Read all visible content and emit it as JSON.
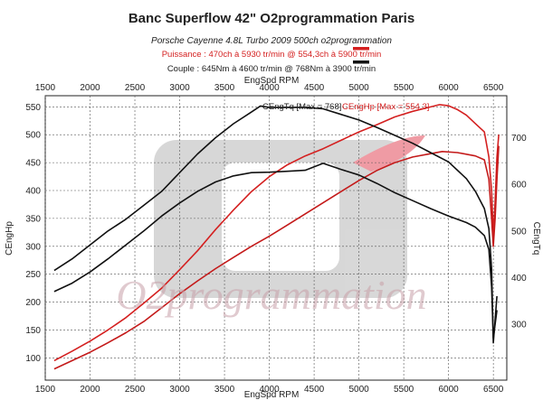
{
  "header": {
    "title": "Banc Superflow 42\" O2programmation Paris",
    "subtitle": "Porsche Cayenne 4.8L Turbo 2009 500ch o2programmation",
    "power_text": "Puissance : 470ch à 5930 tr/min @ 554,3ch à 5900 tr/min",
    "torque_text": "Couple : 645Nm à 4600 tr/min @ 768Nm à 3900 tr/min"
  },
  "watermark": "O2programmation",
  "chart_data": {
    "type": "line",
    "xlabel_top": "EngSpd RPM",
    "xlabel_bottom": "EngSpd RPM",
    "ylabel_left": "CEngHp",
    "ylabel_right": "CEngTq",
    "xlim": [
      1500,
      6650
    ],
    "ylim_left": [
      60,
      570
    ],
    "ylim_right": [
      180,
      790
    ],
    "xticks": [
      1500,
      2000,
      2500,
      3000,
      3500,
      4000,
      4500,
      5000,
      5500,
      6000,
      6500
    ],
    "yticks_left": [
      100,
      150,
      200,
      250,
      300,
      350,
      400,
      450,
      500,
      550
    ],
    "yticks_right": [
      300,
      400,
      500,
      600,
      700
    ],
    "max_labels": {
      "torque": "CEngTq [Max = 768]",
      "power": "CEngHp [Max = 554.3]"
    },
    "colors": {
      "power_stock": "#c41a1a",
      "power_tuned": "#d42020",
      "torque_stock": "#111111",
      "torque_tuned": "#111111",
      "grid": "#555555"
    },
    "series": [
      {
        "name": "CEngHp",
        "axis": "left",
        "color": "#d42020",
        "points": [
          [
            1600,
            95
          ],
          [
            1800,
            112
          ],
          [
            2000,
            130
          ],
          [
            2200,
            150
          ],
          [
            2400,
            172
          ],
          [
            2600,
            198
          ],
          [
            2800,
            225
          ],
          [
            3000,
            258
          ],
          [
            3200,
            292
          ],
          [
            3400,
            330
          ],
          [
            3600,
            365
          ],
          [
            3800,
            398
          ],
          [
            4000,
            425
          ],
          [
            4200,
            446
          ],
          [
            4400,
            462
          ],
          [
            4600,
            475
          ],
          [
            4800,
            490
          ],
          [
            5000,
            505
          ],
          [
            5200,
            518
          ],
          [
            5400,
            532
          ],
          [
            5600,
            542
          ],
          [
            5800,
            550
          ],
          [
            5900,
            554
          ],
          [
            6000,
            552
          ],
          [
            6100,
            545
          ],
          [
            6200,
            535
          ],
          [
            6300,
            520
          ],
          [
            6400,
            505
          ],
          [
            6450,
            460
          ],
          [
            6480,
            400
          ],
          [
            6500,
            320
          ],
          [
            6520,
            380
          ],
          [
            6540,
            460
          ],
          [
            6560,
            500
          ]
        ]
      },
      {
        "name": "",
        "axis": "left",
        "color": "#c41a1a",
        "points": [
          [
            1600,
            80
          ],
          [
            1800,
            95
          ],
          [
            2000,
            110
          ],
          [
            2200,
            127
          ],
          [
            2400,
            145
          ],
          [
            2600,
            165
          ],
          [
            2800,
            190
          ],
          [
            3000,
            215
          ],
          [
            3200,
            238
          ],
          [
            3400,
            260
          ],
          [
            3600,
            280
          ],
          [
            3800,
            300
          ],
          [
            4000,
            318
          ],
          [
            4200,
            338
          ],
          [
            4400,
            358
          ],
          [
            4600,
            378
          ],
          [
            4800,
            398
          ],
          [
            5000,
            418
          ],
          [
            5200,
            436
          ],
          [
            5400,
            450
          ],
          [
            5600,
            460
          ],
          [
            5800,
            466
          ],
          [
            5930,
            470
          ],
          [
            6100,
            468
          ],
          [
            6300,
            462
          ],
          [
            6400,
            455
          ],
          [
            6450,
            420
          ],
          [
            6480,
            350
          ],
          [
            6500,
            300
          ],
          [
            6520,
            350
          ],
          [
            6540,
            420
          ],
          [
            6560,
            480
          ]
        ]
      },
      {
        "name": "CEngTq",
        "axis": "right",
        "color": "#111111",
        "points": [
          [
            1600,
            415
          ],
          [
            1800,
            440
          ],
          [
            2000,
            470
          ],
          [
            2200,
            500
          ],
          [
            2400,
            525
          ],
          [
            2600,
            555
          ],
          [
            2800,
            585
          ],
          [
            3000,
            625
          ],
          [
            3200,
            665
          ],
          [
            3400,
            700
          ],
          [
            3600,
            730
          ],
          [
            3800,
            755
          ],
          [
            3900,
            768
          ],
          [
            4000,
            765
          ],
          [
            4200,
            765
          ],
          [
            4400,
            765
          ],
          [
            4600,
            762
          ],
          [
            4800,
            750
          ],
          [
            5000,
            738
          ],
          [
            5200,
            722
          ],
          [
            5400,
            705
          ],
          [
            5600,
            688
          ],
          [
            5800,
            668
          ],
          [
            6000,
            648
          ],
          [
            6200,
            612
          ],
          [
            6300,
            585
          ],
          [
            6400,
            548
          ],
          [
            6450,
            505
          ],
          [
            6480,
            420
          ],
          [
            6500,
            260
          ],
          [
            6520,
            310
          ],
          [
            6540,
            360
          ]
        ]
      },
      {
        "name": "",
        "axis": "right",
        "color": "#111111",
        "points": [
          [
            1600,
            370
          ],
          [
            1800,
            388
          ],
          [
            2000,
            412
          ],
          [
            2200,
            440
          ],
          [
            2400,
            470
          ],
          [
            2600,
            500
          ],
          [
            2800,
            532
          ],
          [
            3000,
            560
          ],
          [
            3200,
            585
          ],
          [
            3400,
            605
          ],
          [
            3600,
            618
          ],
          [
            3800,
            625
          ],
          [
            4000,
            626
          ],
          [
            4200,
            628
          ],
          [
            4400,
            630
          ],
          [
            4600,
            645
          ],
          [
            4800,
            632
          ],
          [
            5000,
            620
          ],
          [
            5200,
            602
          ],
          [
            5400,
            582
          ],
          [
            5600,
            565
          ],
          [
            5800,
            548
          ],
          [
            6000,
            532
          ],
          [
            6200,
            518
          ],
          [
            6300,
            508
          ],
          [
            6400,
            490
          ],
          [
            6450,
            460
          ],
          [
            6480,
            380
          ],
          [
            6500,
            270
          ],
          [
            6520,
            300
          ],
          [
            6540,
            330
          ]
        ]
      }
    ]
  }
}
